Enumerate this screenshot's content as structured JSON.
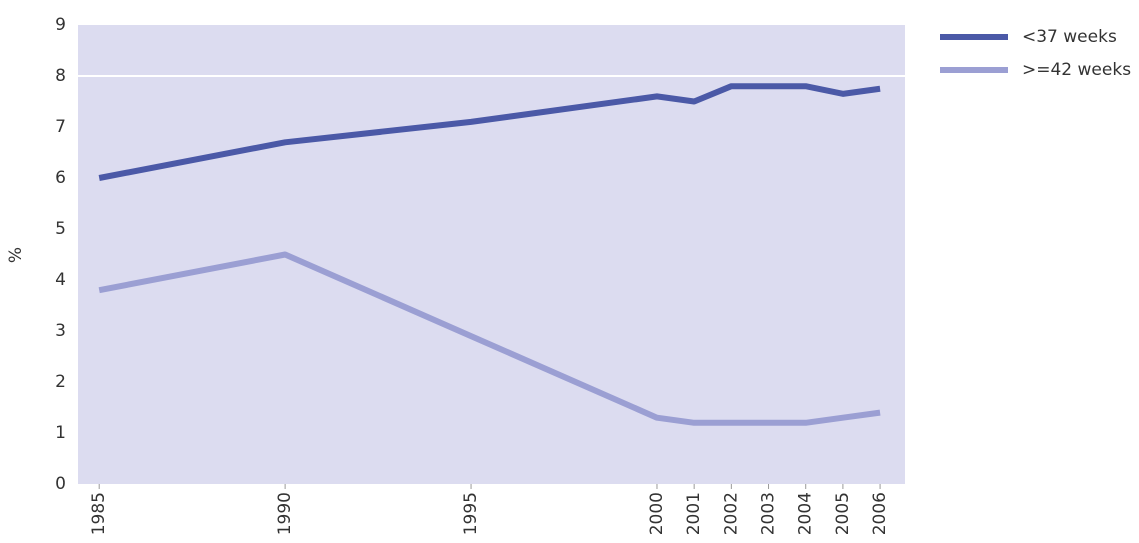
{
  "chart_data": {
    "type": "line",
    "y_label": "%",
    "x": [
      1985,
      1990,
      1995,
      2000,
      2001,
      2002,
      2003,
      2004,
      2005,
      2006
    ],
    "series": [
      {
        "name": "<37 weeks",
        "color": "#4b59a7",
        "values": [
          6.0,
          6.7,
          7.1,
          7.6,
          7.5,
          7.8,
          7.8,
          7.8,
          7.65,
          7.75
        ]
      },
      {
        "name": ">=42 weeks",
        "color": "#9b9fd3",
        "values": [
          3.8,
          4.5,
          2.9,
          1.3,
          1.2,
          1.2,
          1.2,
          1.2,
          1.3,
          1.4
        ]
      }
    ],
    "xlim": [
      1984.43,
      2006.67
    ],
    "xticks": [
      1985,
      1990,
      1995,
      2000,
      2001,
      2002,
      2003,
      2004,
      2005,
      2006
    ],
    "ylim": [
      0,
      9
    ],
    "yticks": [
      0,
      1,
      2,
      3,
      4,
      5,
      6,
      7,
      8,
      9
    ],
    "reference_line": 8,
    "legend": "top-right"
  }
}
